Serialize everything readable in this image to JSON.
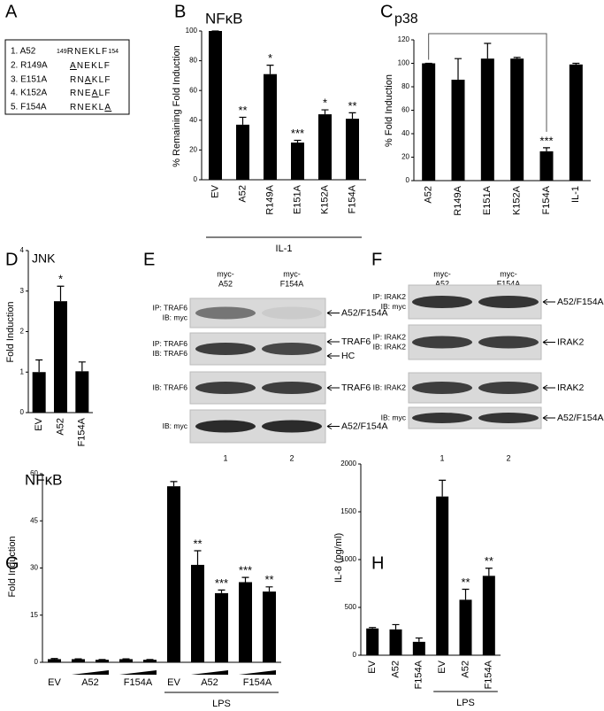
{
  "panel_labels": [
    "A",
    "B",
    "C",
    "D",
    "E",
    "F",
    "G",
    "H"
  ],
  "mutants": [
    {
      "name": "1. A52",
      "start": "149",
      "seq": "RNEKLF",
      "end": "154"
    },
    {
      "name": "2. R149A",
      "mut": "A",
      "post": "NEKLF"
    },
    {
      "name": "3. E151A",
      "pre": "RN",
      "mut": "A",
      "post": "KLF"
    },
    {
      "name": "4. K152A",
      "pre": "RNE",
      "mut": "A",
      "post": "LF"
    },
    {
      "name": "5. F154A",
      "pre": "RNEKL",
      "mut": "A"
    }
  ],
  "chart_data": [
    {
      "type": "bar",
      "title": "NFκB",
      "ylabel": "% Remaining Fold Induction",
      "categories": [
        "EV",
        "A52",
        "R149A",
        "E151A",
        "K152A",
        "F154A"
      ],
      "values": [
        100,
        37,
        71,
        25,
        44,
        41
      ],
      "errors": [
        0,
        5,
        6,
        1.5,
        3,
        4
      ],
      "annotations": [
        null,
        "**",
        "*",
        "***",
        "*",
        "**"
      ],
      "group_label": "IL-1",
      "color": "#000000",
      "ylim": [
        0,
        100
      ],
      "yticks": [
        0,
        20,
        40,
        60,
        80,
        100
      ]
    },
    {
      "type": "bar",
      "title": "p38",
      "ylabel": "% Fold Induction",
      "categories": [
        "A52",
        "R149A",
        "E151A",
        "K152A",
        "F154A",
        "IL-1"
      ],
      "values": [
        100,
        86,
        104,
        104,
        25,
        99
      ],
      "errors": [
        0,
        18,
        13,
        1,
        3,
        1
      ],
      "annotations": [
        null,
        null,
        null,
        null,
        "***",
        null
      ],
      "color": "#000000",
      "ylim": [
        0,
        120
      ],
      "yticks": [
        0,
        20,
        40,
        60,
        80,
        100,
        120
      ]
    },
    {
      "type": "bar",
      "title": "JNK",
      "ylabel": "Fold Induction",
      "categories": [
        "EV",
        "A52",
        "F154A"
      ],
      "values": [
        1,
        2.75,
        1.02
      ],
      "errors": [
        0.3,
        0.37,
        0.23
      ],
      "annotations": [
        null,
        "*",
        null
      ],
      "color": "#000000",
      "ylim": [
        0,
        4
      ],
      "yticks": [
        0,
        1,
        2,
        3,
        4
      ]
    },
    {
      "type": "bar",
      "title": "NFκB",
      "ylabel": "Fold Induction",
      "categories": [
        "EV",
        "A52",
        null,
        "F154A",
        null,
        "EV",
        "A52",
        null,
        "F154A",
        null
      ],
      "values": [
        1,
        1,
        0.8,
        1,
        0.8,
        56,
        31,
        22,
        25.5,
        22.5
      ],
      "errors": [
        0.2,
        0.1,
        0.1,
        0.1,
        0.1,
        1.5,
        4.5,
        1,
        1.5,
        1.5
      ],
      "annotations": [
        null,
        null,
        null,
        null,
        null,
        null,
        "**",
        "***",
        "***",
        "**"
      ],
      "group_label": "LPS",
      "color": "#000000",
      "ylim": [
        0,
        60
      ],
      "yticks": [
        0,
        15,
        30,
        45,
        60
      ]
    },
    {
      "type": "bar",
      "ylabel": "IL-8 (pg/ml)",
      "categories": [
        "EV",
        "A52",
        "F154A",
        "EV",
        "A52",
        "F154A"
      ],
      "values": [
        280,
        270,
        140,
        1660,
        580,
        830
      ],
      "errors": [
        10,
        50,
        40,
        170,
        110,
        80
      ],
      "annotations": [
        null,
        null,
        null,
        null,
        "**",
        "**"
      ],
      "group_label": "LPS",
      "color": "#000000",
      "ylim": [
        0,
        2000
      ],
      "yticks": [
        0,
        500,
        1000,
        1500,
        2000
      ]
    }
  ],
  "blots": [
    {
      "lanes": [
        [
          "myc-",
          "A52"
        ],
        [
          "myc-",
          "F154A"
        ]
      ],
      "rows": [
        {
          "labels": [
            "IP: TRAF6",
            "IB: myc"
          ],
          "markers": [
            "A52/F154A"
          ]
        },
        {
          "labels": [
            "IP: TRAF6",
            "IB: TRAF6"
          ],
          "markers": [
            "TRAF6",
            "HC"
          ]
        },
        {
          "labels": [
            "IB: TRAF6"
          ],
          "markers": [
            "TRAF6"
          ]
        },
        {
          "labels": [
            "IB: myc"
          ],
          "markers": [
            "A52/F154A"
          ]
        }
      ],
      "lane_numbers": [
        "1",
        "2"
      ]
    },
    {
      "lanes": [
        [
          "myc-",
          "A52"
        ],
        [
          "myc-",
          "F154A"
        ]
      ],
      "rows": [
        {
          "labels": [
            "IP: IRAK2",
            "IB: myc"
          ],
          "markers": [
            "A52/F154A"
          ]
        },
        {
          "labels": [
            "IP: IRAK2",
            "IB: IRAK2"
          ],
          "markers": [
            "IRAK2"
          ]
        },
        {
          "labels": [
            "IB: IRAK2"
          ],
          "markers": [
            "IRAK2"
          ]
        },
        {
          "labels": [
            "IB: myc"
          ],
          "markers": [
            "A52/F154A"
          ]
        }
      ],
      "lane_numbers": [
        "1",
        "2"
      ]
    }
  ]
}
